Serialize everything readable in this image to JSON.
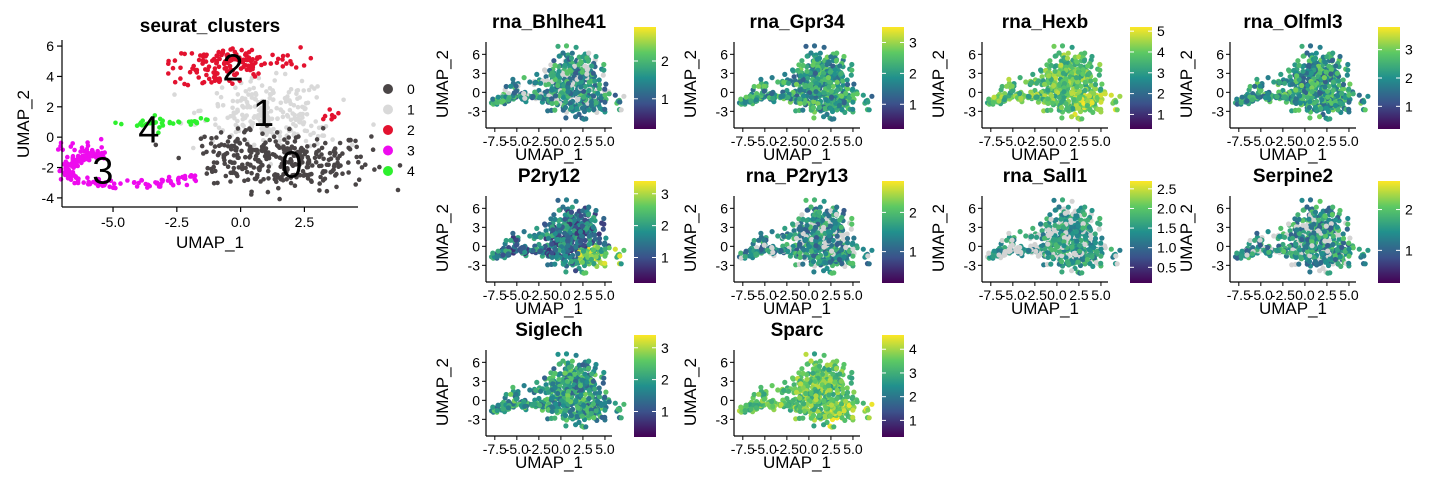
{
  "main_plot": {
    "title": "seurat_clusters",
    "xlabel": "UMAP_1",
    "ylabel": "UMAP_2",
    "xticks": [
      "-5.0",
      "-2.5",
      "0.0",
      "2.5"
    ],
    "yticks": [
      "-4",
      "-2",
      "0",
      "2",
      "4",
      "6"
    ],
    "legend": [
      {
        "label": "0",
        "color": "#4a4546"
      },
      {
        "label": "1",
        "color": "#d9d9d9"
      },
      {
        "label": "2",
        "color": "#e3122f"
      },
      {
        "label": "3",
        "color": "#ee0bee"
      },
      {
        "label": "4",
        "color": "#2ef02e"
      }
    ],
    "cluster_labels": [
      "0",
      "1",
      "2",
      "3",
      "4"
    ]
  },
  "feature_panels": [
    {
      "title": "rna_Bhlhe41",
      "xlabel": "UMAP_1",
      "ylabel": "UMAP_2",
      "colorbar_ticks": [
        "1",
        "2"
      ]
    },
    {
      "title": "rna_Gpr34",
      "xlabel": "UMAP_1",
      "ylabel": "UMAP_2",
      "colorbar_ticks": [
        "1",
        "2",
        "3"
      ]
    },
    {
      "title": "rna_Hexb",
      "xlabel": "UMAP_1",
      "ylabel": "UMAP_2",
      "colorbar_ticks": [
        "1",
        "2",
        "3",
        "4",
        "5"
      ]
    },
    {
      "title": "rna_Olfml3",
      "xlabel": "UMAP_1",
      "ylabel": "UMAP_2",
      "colorbar_ticks": [
        "1",
        "2",
        "3"
      ]
    },
    {
      "title": "P2ry12",
      "xlabel": "UMAP_1",
      "ylabel": "UMAP_2",
      "colorbar_ticks": [
        "1",
        "2",
        "3"
      ]
    },
    {
      "title": "rna_P2ry13",
      "xlabel": "UMAP_1",
      "ylabel": "UMAP_2",
      "colorbar_ticks": [
        "1",
        "2"
      ]
    },
    {
      "title": "rna_Sall1",
      "xlabel": "UMAP_1",
      "ylabel": "UMAP_2",
      "colorbar_ticks": [
        "0.5",
        "1.0",
        "1.5",
        "2.0",
        "2.5"
      ]
    },
    {
      "title": "Serpine2",
      "xlabel": "UMAP_1",
      "ylabel": "UMAP_2",
      "colorbar_ticks": [
        "1",
        "2"
      ]
    },
    {
      "title": "Siglech",
      "xlabel": "UMAP_1",
      "ylabel": "UMAP_2",
      "colorbar_ticks": [
        "1",
        "2",
        "3"
      ]
    },
    {
      "title": "Sparc",
      "xlabel": "UMAP_1",
      "ylabel": "UMAP_2",
      "colorbar_ticks": [
        "1",
        "2",
        "3",
        "4"
      ]
    }
  ],
  "feature_xticks": [
    "-7.5",
    "-5.0",
    "-2.5",
    "0.0",
    "2.5",
    "5.0"
  ],
  "feature_yticks": [
    "-3",
    "0",
    "3",
    "6"
  ],
  "colormap": [
    "#440154",
    "#3b528b",
    "#21908d",
    "#5dc963",
    "#fde725"
  ],
  "chart_data": {
    "type": "scatter",
    "title": "seurat_clusters",
    "xlabel": "UMAP_1",
    "ylabel": "UMAP_2",
    "xlim": [
      -7,
      4.6
    ],
    "ylim": [
      -4.6,
      6.4
    ],
    "legend_position": "right",
    "grid": false,
    "series": [
      {
        "name": "0",
        "color": "#4a4546",
        "center": [
          1.8,
          -1.5
        ],
        "spread": [
          1.7,
          1.2
        ]
      },
      {
        "name": "1",
        "color": "#d9d9d9",
        "center": [
          0.9,
          1.8
        ],
        "spread": [
          1.6,
          1.6
        ]
      },
      {
        "name": "2",
        "color": "#e3122f",
        "center": [
          0.1,
          4.8
        ],
        "spread": [
          1.9,
          0.9
        ]
      },
      {
        "name": "3",
        "color": "#ee0bee",
        "center": [
          -4.5,
          -2.5
        ],
        "spread": [
          2.4,
          1.3
        ]
      },
      {
        "name": "4",
        "color": "#2ef02e",
        "center": [
          -2.9,
          0.9
        ],
        "spread": [
          1.0,
          0.3
        ]
      }
    ],
    "feature_panels": [
      {
        "title": "rna_Bhlhe41",
        "value_range": [
          0.2,
          2.9
        ]
      },
      {
        "title": "rna_Gpr34",
        "value_range": [
          0.2,
          3.5
        ]
      },
      {
        "title": "rna_Hexb",
        "value_range": [
          0.3,
          5.2
        ]
      },
      {
        "title": "rna_Olfml3",
        "value_range": [
          0.2,
          3.8
        ]
      },
      {
        "title": "P2ry12",
        "value_range": [
          0.2,
          3.4
        ]
      },
      {
        "title": "rna_P2ry13",
        "value_range": [
          0.2,
          2.8
        ]
      },
      {
        "title": "rna_Sall1",
        "value_range": [
          0.1,
          2.7
        ]
      },
      {
        "title": "Serpine2",
        "value_range": [
          0.2,
          2.7
        ]
      },
      {
        "title": "Siglech",
        "value_range": [
          0.2,
          3.4
        ]
      },
      {
        "title": "Sparc",
        "value_range": [
          0.3,
          4.6
        ]
      }
    ],
    "feature_xlim": [
      -8.5,
      5.8
    ],
    "feature_ylim": [
      -5,
      7
    ]
  }
}
